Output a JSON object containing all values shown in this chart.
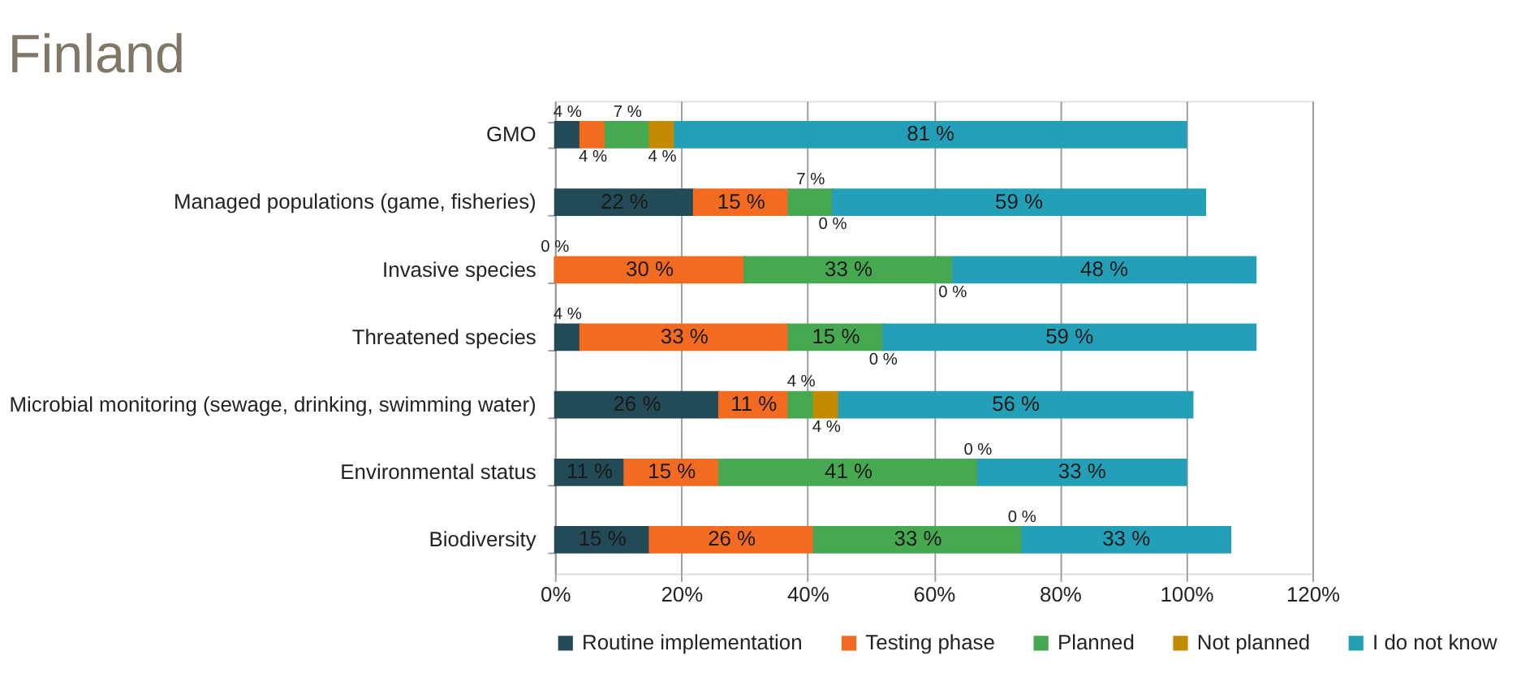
{
  "chart_data": {
    "type": "bar",
    "orientation": "horizontal",
    "stacked": true,
    "title": "Finland",
    "categories": [
      "GMO",
      "Managed populations (game, fisheries)",
      "Invasive species",
      "Threatened species",
      "Microbial monitoring (sewage, drinking, swimming water)",
      "Environmental status",
      "Biodiversity"
    ],
    "series": [
      {
        "name": "Routine implementation",
        "color": "#234a57",
        "values": [
          4,
          22,
          0,
          4,
          26,
          11,
          15
        ],
        "value_labels": [
          "4 %",
          "22 %",
          "0 %",
          "4 %",
          "26 %",
          "11 %",
          "15 %"
        ]
      },
      {
        "name": "Testing phase",
        "color": "#f26b21",
        "values": [
          4,
          15,
          30,
          33,
          11,
          15,
          26
        ],
        "value_labels": [
          "4 %",
          "15 %",
          "30 %",
          "33 %",
          "11 %",
          "15 %",
          "26 %"
        ]
      },
      {
        "name": "Planned",
        "color": "#46a851",
        "values": [
          7,
          7,
          33,
          15,
          4,
          41,
          33
        ],
        "value_labels": [
          "7 %",
          "7 %",
          "33 %",
          "15 %",
          "4 %",
          "41 %",
          "33 %"
        ]
      },
      {
        "name": "Not planned",
        "color": "#c58b00",
        "values": [
          4,
          0,
          0,
          0,
          4,
          0,
          0
        ],
        "value_labels": [
          "4 %",
          "0 %",
          "0 %",
          "0 %",
          "4 %",
          "0 %",
          "0 %"
        ]
      },
      {
        "name": "I do not know",
        "color": "#23a0b8",
        "values": [
          81,
          59,
          48,
          59,
          56,
          33,
          33
        ],
        "value_labels": [
          "81 %",
          "59 %",
          "48 %",
          "59 %",
          "56 %",
          "33 %",
          "33 %"
        ]
      }
    ],
    "xlim": [
      0,
      120
    ],
    "xticks": [
      {
        "value": 0,
        "label": "0%"
      },
      {
        "value": 20,
        "label": "20%"
      },
      {
        "value": 40,
        "label": "40%"
      },
      {
        "value": 60,
        "label": "60%"
      },
      {
        "value": 80,
        "label": "80%"
      },
      {
        "value": 100,
        "label": "100%"
      },
      {
        "value": 120,
        "label": "120%"
      }
    ],
    "grid": "x",
    "legend": "bottom"
  }
}
